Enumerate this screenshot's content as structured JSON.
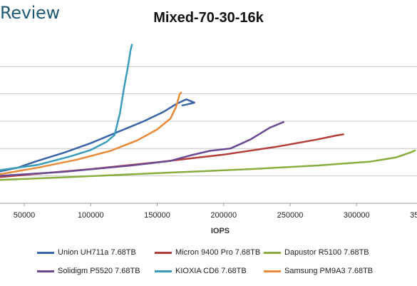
{
  "brand": {
    "text": "Review"
  },
  "chart_data": {
    "type": "line",
    "title": "Mixed-70-30-16k",
    "xlabel": "IOPS",
    "ylabel": "",
    "xlim": [
      30000,
      345000
    ],
    "x_ticks": [
      50000,
      100000,
      150000,
      200000,
      250000,
      300000,
      350000
    ],
    "x_tick_labels": [
      "50000",
      "100000",
      "150000",
      "200000",
      "250000",
      "300000",
      "350000"
    ],
    "ylim": [
      0,
      6
    ],
    "y_gridlines": [
      1,
      2,
      3,
      4,
      5
    ],
    "grid": true,
    "legend_position": "bottom",
    "series": [
      {
        "name": "Union UH711a 7.68TB",
        "color": "#3a65a8",
        "points": [
          [
            30000,
            1.15
          ],
          [
            45000,
            1.3
          ],
          [
            60000,
            1.55
          ],
          [
            80000,
            1.85
          ],
          [
            100000,
            2.2
          ],
          [
            120000,
            2.6
          ],
          [
            140000,
            3.0
          ],
          [
            155000,
            3.35
          ],
          [
            165000,
            3.65
          ],
          [
            172000,
            3.8
          ],
          [
            178000,
            3.68
          ],
          [
            173000,
            3.62
          ],
          [
            169000,
            3.58
          ]
        ]
      },
      {
        "name": "Micron 9400 Pro 7.68TB",
        "color": "#b33c38",
        "points": [
          [
            30000,
            0.95
          ],
          [
            60000,
            1.08
          ],
          [
            100000,
            1.25
          ],
          [
            150000,
            1.5
          ],
          [
            200000,
            1.78
          ],
          [
            240000,
            2.07
          ],
          [
            270000,
            2.33
          ],
          [
            285000,
            2.48
          ],
          [
            290000,
            2.52
          ]
        ]
      },
      {
        "name": "Dapustor R5100 7.68TB",
        "color": "#86ad3e",
        "points": [
          [
            30000,
            0.85
          ],
          [
            80000,
            0.95
          ],
          [
            150000,
            1.1
          ],
          [
            220000,
            1.25
          ],
          [
            270000,
            1.38
          ],
          [
            310000,
            1.52
          ],
          [
            330000,
            1.68
          ],
          [
            340000,
            1.85
          ],
          [
            344000,
            1.93
          ]
        ]
      },
      {
        "name": "Solidigm P5520 7.68TB",
        "color": "#6b4a93",
        "points": [
          [
            30000,
            1.0
          ],
          [
            80000,
            1.15
          ],
          [
            130000,
            1.38
          ],
          [
            160000,
            1.55
          ],
          [
            175000,
            1.75
          ],
          [
            190000,
            1.92
          ],
          [
            205000,
            2.0
          ],
          [
            220000,
            2.33
          ],
          [
            235000,
            2.77
          ],
          [
            245000,
            2.97
          ]
        ]
      },
      {
        "name": "KIOXIA CD6 7.68TB",
        "color": "#3a9cb8",
        "points": [
          [
            30000,
            1.2
          ],
          [
            60000,
            1.4
          ],
          [
            85000,
            1.72
          ],
          [
            100000,
            1.95
          ],
          [
            112000,
            2.25
          ],
          [
            118000,
            2.5
          ],
          [
            122000,
            3.3
          ],
          [
            125000,
            4.2
          ],
          [
            128000,
            5.0
          ],
          [
            130000,
            5.6
          ],
          [
            131000,
            5.8
          ]
        ]
      },
      {
        "name": "Samsung PM9A3 7.68TB",
        "color": "#e98a38",
        "points": [
          [
            30000,
            1.05
          ],
          [
            60000,
            1.3
          ],
          [
            90000,
            1.6
          ],
          [
            115000,
            1.92
          ],
          [
            135000,
            2.3
          ],
          [
            150000,
            2.7
          ],
          [
            160000,
            3.1
          ],
          [
            164000,
            3.5
          ],
          [
            167000,
            4.0
          ],
          [
            168000,
            4.05
          ]
        ]
      }
    ]
  }
}
